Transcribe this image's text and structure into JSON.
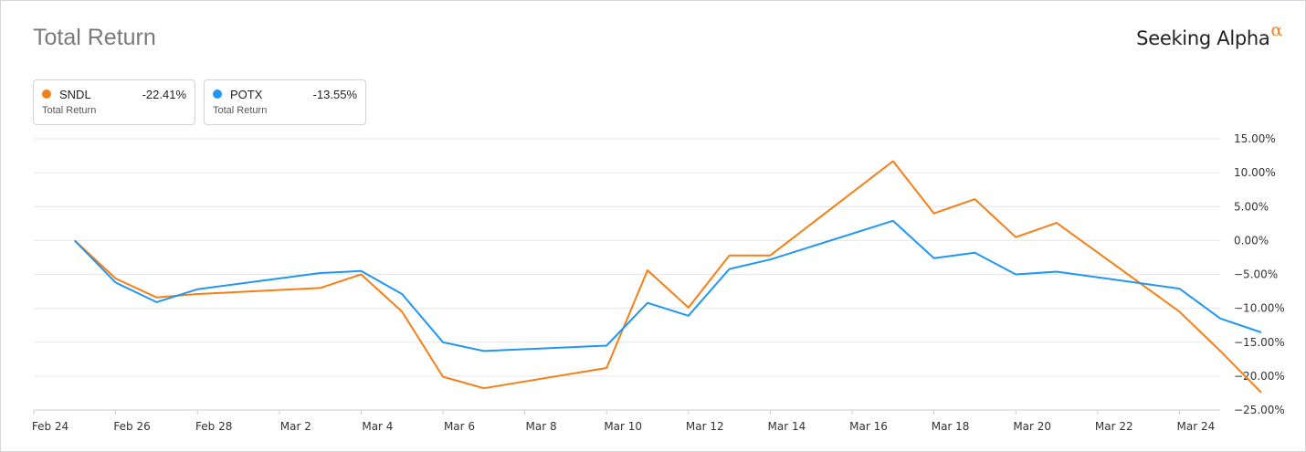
{
  "header": {
    "title": "Total Return",
    "brand": "Seeking Alpha",
    "brand_mark": "α"
  },
  "legend": [
    {
      "ticker": "SNDL",
      "value": "-22.41%",
      "label": "Total Return",
      "color": "#f57f17"
    },
    {
      "ticker": "POTX",
      "value": "-13.55%",
      "label": "Total Return",
      "color": "#2196f3"
    }
  ],
  "chart_data": {
    "type": "line",
    "title": "Total Return",
    "xlabel": "",
    "ylabel": "",
    "x_ticks": [
      "Feb 24",
      "Feb 26",
      "Feb 28",
      "Mar 2",
      "Mar 4",
      "Mar 6",
      "Mar 8",
      "Mar 10",
      "Mar 12",
      "Mar 14",
      "Mar 16",
      "Mar 18",
      "Mar 20",
      "Mar 22",
      "Mar 24"
    ],
    "y_ticks": [
      "15.00%",
      "10.00%",
      "5.00%",
      "0.00%",
      "−5.00%",
      "−10.00%",
      "−15.00%",
      "−20.00%",
      "−25.00%"
    ],
    "ylim": [
      -25,
      15
    ],
    "grid": true,
    "x": [
      "2020-02-25",
      "2020-02-26",
      "2020-02-27",
      "2020-02-28",
      "2020-03-02",
      "2020-03-03",
      "2020-03-04",
      "2020-03-05",
      "2020-03-06",
      "2020-03-09",
      "2020-03-10",
      "2020-03-11",
      "2020-03-12",
      "2020-03-13",
      "2020-03-16",
      "2020-03-17",
      "2020-03-18",
      "2020-03-19",
      "2020-03-20",
      "2020-03-23",
      "2020-03-24",
      "2020-03-25"
    ],
    "series": [
      {
        "name": "SNDL",
        "color": "#f57f17",
        "values": [
          0.0,
          -5.6,
          -8.4,
          -7.9,
          -7.0,
          -5.0,
          -10.5,
          -20.1,
          -21.8,
          -18.8,
          -4.4,
          -9.9,
          -2.2,
          -2.2,
          11.7,
          4.0,
          6.1,
          0.5,
          2.6,
          -10.5,
          -16.3,
          -22.41
        ]
      },
      {
        "name": "POTX",
        "color": "#2196f3",
        "values": [
          0.0,
          -6.2,
          -9.1,
          -7.2,
          -4.8,
          -4.5,
          -7.9,
          -15.0,
          -16.3,
          -15.5,
          -9.2,
          -11.1,
          -4.2,
          -2.8,
          2.9,
          -2.6,
          -1.8,
          -5.0,
          -4.6,
          -7.1,
          -11.5,
          -13.55
        ]
      }
    ]
  }
}
